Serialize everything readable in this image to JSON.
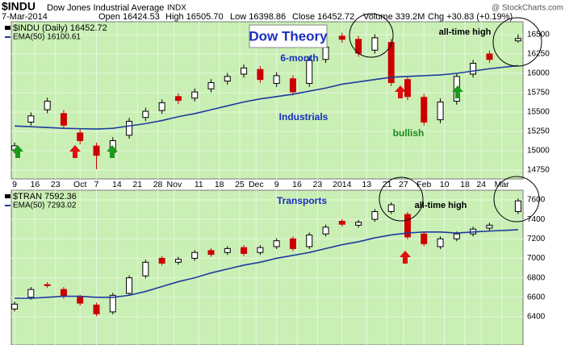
{
  "header": {
    "symbol": "$INDU",
    "name": "Dow Jones Industrial Average",
    "exchange": "INDX",
    "site": "@ StockCharts.com",
    "date": "7-Mar-2014",
    "quote": [
      "Open 16424.53",
      "High 16505.70",
      "Low 16398.86",
      "Close 16452.72",
      "Volume 339.2M",
      "Chg +30.83 (+0.19%)"
    ]
  },
  "chart_data": [
    {
      "type": "candlestick",
      "background": "#c9efb4",
      "grid": true,
      "annotations": [
        "Dow Theory",
        "6-month",
        "Industrials",
        "bullish",
        "all-time high"
      ],
      "x": [
        0,
        4,
        8,
        12,
        16,
        20,
        24,
        28,
        32,
        36,
        40,
        44,
        48,
        52,
        56,
        60,
        64,
        68,
        72,
        76,
        80,
        84,
        88,
        92,
        96,
        100,
        104,
        108,
        112,
        116,
        123
      ],
      "xlim": [
        -0.8,
        124.2
      ],
      "xticks": [
        {
          "value": 0,
          "label": "9"
        },
        {
          "value": 5,
          "label": "16"
        },
        {
          "value": 10,
          "label": "23"
        },
        {
          "value": 16,
          "label": "Oct"
        },
        {
          "value": 20,
          "label": "7"
        },
        {
          "value": 25,
          "label": "14"
        },
        {
          "value": 30,
          "label": "21"
        },
        {
          "value": 35,
          "label": "28"
        },
        {
          "value": 39,
          "label": "Nov"
        },
        {
          "value": 45,
          "label": "11"
        },
        {
          "value": 50,
          "label": "18"
        },
        {
          "value": 55,
          "label": "25"
        },
        {
          "value": 59,
          "label": "Dec"
        },
        {
          "value": 64,
          "label": "9"
        },
        {
          "value": 69,
          "label": "16"
        },
        {
          "value": 74,
          "label": "23"
        },
        {
          "value": 80,
          "label": "2014"
        },
        {
          "value": 86,
          "label": "13"
        },
        {
          "value": 91,
          "label": "21"
        },
        {
          "value": 95,
          "label": "27"
        },
        {
          "value": 100,
          "label": "Feb"
        },
        {
          "value": 105,
          "label": "10"
        },
        {
          "value": 110,
          "label": "18"
        },
        {
          "value": 114,
          "label": "24"
        },
        {
          "value": 119,
          "label": "Mar"
        }
      ],
      "ylim": [
        14635,
        16667
      ],
      "yticks": [
        14750,
        15000,
        15250,
        15500,
        15750,
        16000,
        16250,
        16500
      ],
      "series": [
        {
          "name": "$INDU (Daily) 16452.72",
          "color": "#000000",
          "down_color": "#cc0000",
          "open": [
            15010,
            15370,
            15530,
            15480,
            15230,
            15060,
            14980,
            15200,
            15430,
            15520,
            15700,
            15680,
            15800,
            15900,
            15990,
            16050,
            15870,
            15930,
            15870,
            16180,
            16480,
            16440,
            16300,
            16400,
            15920,
            15690,
            15400,
            15640,
            15990,
            16250,
            16420
          ],
          "high": [
            15108,
            15495,
            15685,
            15525,
            15275,
            15105,
            15175,
            15425,
            15555,
            15665,
            15745,
            15805,
            15925,
            16005,
            16115,
            16095,
            16015,
            15975,
            16215,
            16385,
            16525,
            16485,
            16505,
            16445,
            15965,
            15735,
            15675,
            16005,
            16175,
            16295,
            16505
          ],
          "low": [
            14965,
            15325,
            15485,
            15285,
            15085,
            14760,
            14935,
            15155,
            15385,
            15475,
            15605,
            15635,
            15755,
            15855,
            15945,
            15875,
            15825,
            15715,
            15825,
            16135,
            16395,
            16215,
            16255,
            15835,
            15655,
            15325,
            15355,
            15595,
            15945,
            16135,
            16398
          ],
          "close": [
            15063,
            15450,
            15640,
            15330,
            15130,
            14940,
            15130,
            15380,
            15510,
            15620,
            15650,
            15760,
            15880,
            15960,
            16070,
            15920,
            15970,
            15760,
            16170,
            16340,
            16440,
            16260,
            16460,
            15880,
            15700,
            15370,
            15630,
            15960,
            16130,
            16180,
            16450
          ]
        },
        {
          "name": "EMA(50) 16100.61",
          "color": "#1f3aa0",
          "values": [
            15320,
            15310,
            15300,
            15290,
            15285,
            15280,
            15290,
            15320,
            15350,
            15390,
            15440,
            15480,
            15530,
            15580,
            15630,
            15670,
            15700,
            15730,
            15770,
            15810,
            15860,
            15890,
            15920,
            15950,
            15960,
            15970,
            15980,
            16000,
            16030,
            16060,
            16100
          ]
        }
      ]
    },
    {
      "type": "candlestick",
      "background": "#c9efb4",
      "grid": true,
      "annotations": [
        "Transports",
        "all-time high"
      ],
      "x": [
        0,
        4,
        8,
        12,
        16,
        20,
        24,
        28,
        32,
        36,
        40,
        44,
        48,
        52,
        56,
        60,
        64,
        68,
        72,
        76,
        80,
        84,
        88,
        92,
        96,
        100,
        104,
        108,
        112,
        116,
        123
      ],
      "xlim": [
        -0.8,
        124.2
      ],
      "ylim": [
        6110,
        7699
      ],
      "yticks": [
        6400,
        6600,
        6800,
        7000,
        7200,
        7400,
        7600
      ],
      "series": [
        {
          "name": "$TRAN 7592.36",
          "color": "#000000",
          "down_color": "#cc0000",
          "open": [
            6480,
            6600,
            6730,
            6680,
            6600,
            6520,
            6450,
            6640,
            6820,
            7000,
            6960,
            7000,
            7080,
            7060,
            7110,
            7060,
            7120,
            7200,
            7120,
            7250,
            7380,
            7340,
            7400,
            7480,
            7450,
            7250,
            7120,
            7200,
            7250,
            7310,
            7480
          ],
          "high": [
            6555,
            6705,
            6755,
            6705,
            6625,
            6545,
            6645,
            6825,
            6985,
            7025,
            7015,
            7085,
            7105,
            7125,
            7135,
            7135,
            7205,
            7225,
            7265,
            7345,
            7405,
            7395,
            7505,
            7575,
            7475,
            7275,
            7225,
            7275,
            7325,
            7365,
            7615
          ],
          "low": [
            6455,
            6575,
            6695,
            6585,
            6515,
            6405,
            6425,
            6615,
            6795,
            6925,
            6935,
            6975,
            7015,
            7035,
            7025,
            7035,
            7095,
            7075,
            7095,
            7225,
            7325,
            7315,
            7375,
            7455,
            7195,
            7125,
            7095,
            7175,
            7225,
            7285,
            7455
          ],
          "close": [
            6530,
            6680,
            6720,
            6610,
            6540,
            6430,
            6620,
            6800,
            6960,
            6950,
            6990,
            7060,
            7040,
            7100,
            7050,
            7110,
            7180,
            7100,
            7240,
            7320,
            7350,
            7370,
            7480,
            7550,
            7220,
            7150,
            7200,
            7250,
            7300,
            7340,
            7590
          ]
        },
        {
          "name": "EMA(50) 7293.02",
          "color": "#1f3aa0",
          "values": [
            6590,
            6590,
            6600,
            6610,
            6610,
            6600,
            6600,
            6620,
            6660,
            6710,
            6760,
            6800,
            6850,
            6890,
            6930,
            6960,
            7000,
            7030,
            7060,
            7100,
            7140,
            7170,
            7210,
            7240,
            7260,
            7270,
            7270,
            7260,
            7270,
            7280,
            7293
          ]
        }
      ]
    }
  ]
}
